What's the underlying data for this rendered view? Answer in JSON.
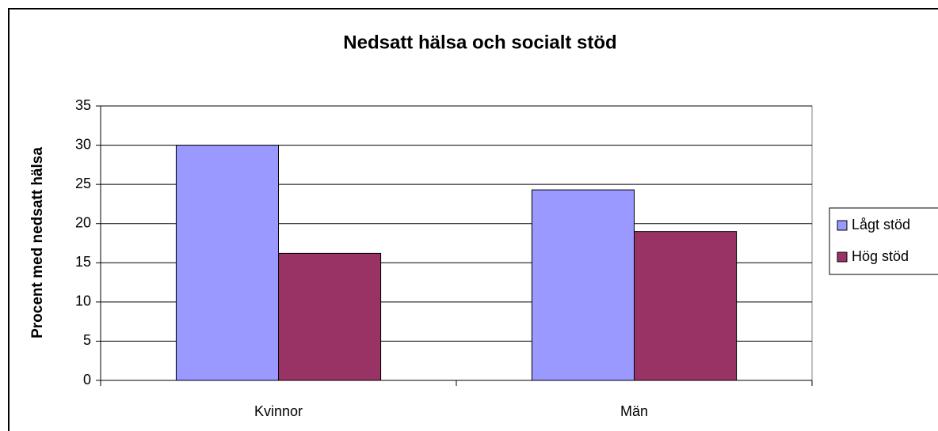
{
  "chart_data": {
    "type": "bar",
    "title": "Nedsatt hälsa och socialt stöd",
    "y_label": "Procent med nedsatt hälsa",
    "categories": [
      "Kvinnor",
      "Män"
    ],
    "series": [
      {
        "name": "Lågt stöd",
        "color": "#9999ff",
        "values": [
          30,
          24.3
        ]
      },
      {
        "name": "Hög stöd",
        "color": "#993366",
        "values": [
          16.2,
          19.0
        ]
      }
    ],
    "ylim": [
      0,
      35
    ],
    "yticks": [
      0,
      5,
      10,
      15,
      20,
      25,
      30,
      35
    ],
    "grid": true,
    "legend": "right"
  }
}
